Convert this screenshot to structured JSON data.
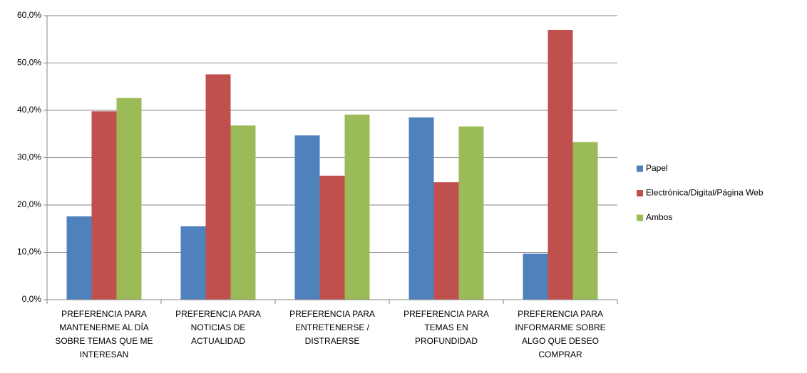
{
  "chart_data": {
    "type": "bar",
    "categories": [
      "PREFERENCIA PARA MANTENERME AL DÍA SOBRE TEMAS QUE ME INTERESAN",
      "PREFERENCIA PARA NOTICIAS DE ACTUALIDAD",
      "PREFERENCIA PARA ENTRETENERSE / DISTRAERSE",
      "PREFERENCIA PARA TEMAS EN PROFUNDIDAD",
      "PREFERENCIA PARA INFORMARME SOBRE ALGO QUE DESEO COMPRAR"
    ],
    "series": [
      {
        "name": "Papel",
        "color": "#4f81bd",
        "values": [
          17.6,
          15.5,
          34.7,
          38.5,
          9.7
        ]
      },
      {
        "name": "Electrónica/Digital/Página Web",
        "color": "#c0504d",
        "values": [
          39.8,
          47.6,
          26.2,
          24.8,
          57.0
        ]
      },
      {
        "name": "Ambos",
        "color": "#9bbb59",
        "values": [
          42.6,
          36.8,
          39.1,
          36.6,
          33.3
        ]
      }
    ],
    "ylim": [
      0,
      60
    ],
    "yticks": [
      {
        "value": 0,
        "label": "0,0%"
      },
      {
        "value": 10,
        "label": "10,0%"
      },
      {
        "value": 20,
        "label": "20,0%"
      },
      {
        "value": 30,
        "label": "30,0%"
      },
      {
        "value": 40,
        "label": "40,0%"
      },
      {
        "value": 50,
        "label": "50,0%"
      },
      {
        "value": 60,
        "label": "60,0%"
      }
    ],
    "grid": true,
    "legend": "right"
  }
}
